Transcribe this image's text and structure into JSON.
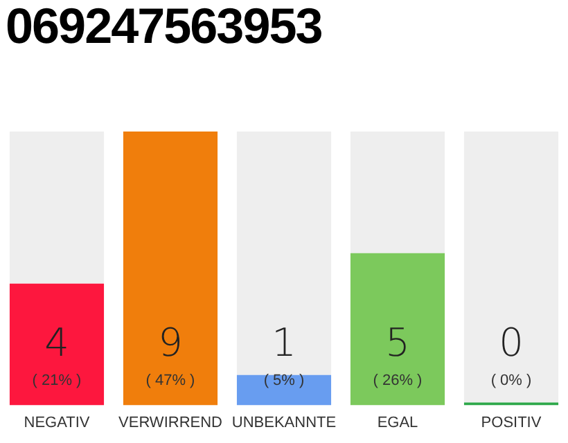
{
  "chart_data": {
    "type": "bar",
    "title": "069247563953",
    "categories": [
      "NEGATIV",
      "VERWIRREND",
      "UNBEKANNTE",
      "EGAL",
      "POSITIV"
    ],
    "stacked": true,
    "series": [
      {
        "colors": [
          "#fd173e",
          "#f07e0c",
          "#689df0",
          "#7cc95c",
          "#2ea84a"
        ],
        "values": [
          4,
          9,
          1,
          5,
          0
        ],
        "value_labels": [
          "4",
          "9",
          "1",
          "5",
          "0"
        ]
      },
      {
        "color": "#eeeeee",
        "values": [
          5,
          0,
          8,
          4,
          9
        ]
      }
    ],
    "ylim": [
      0,
      9
    ],
    "tick_labels": "x",
    "grid": false,
    "legend": false,
    "annotations": [
      "( 21% )",
      "( 47% )",
      "( 5% )",
      "( 26% )",
      "( 0% )"
    ]
  }
}
